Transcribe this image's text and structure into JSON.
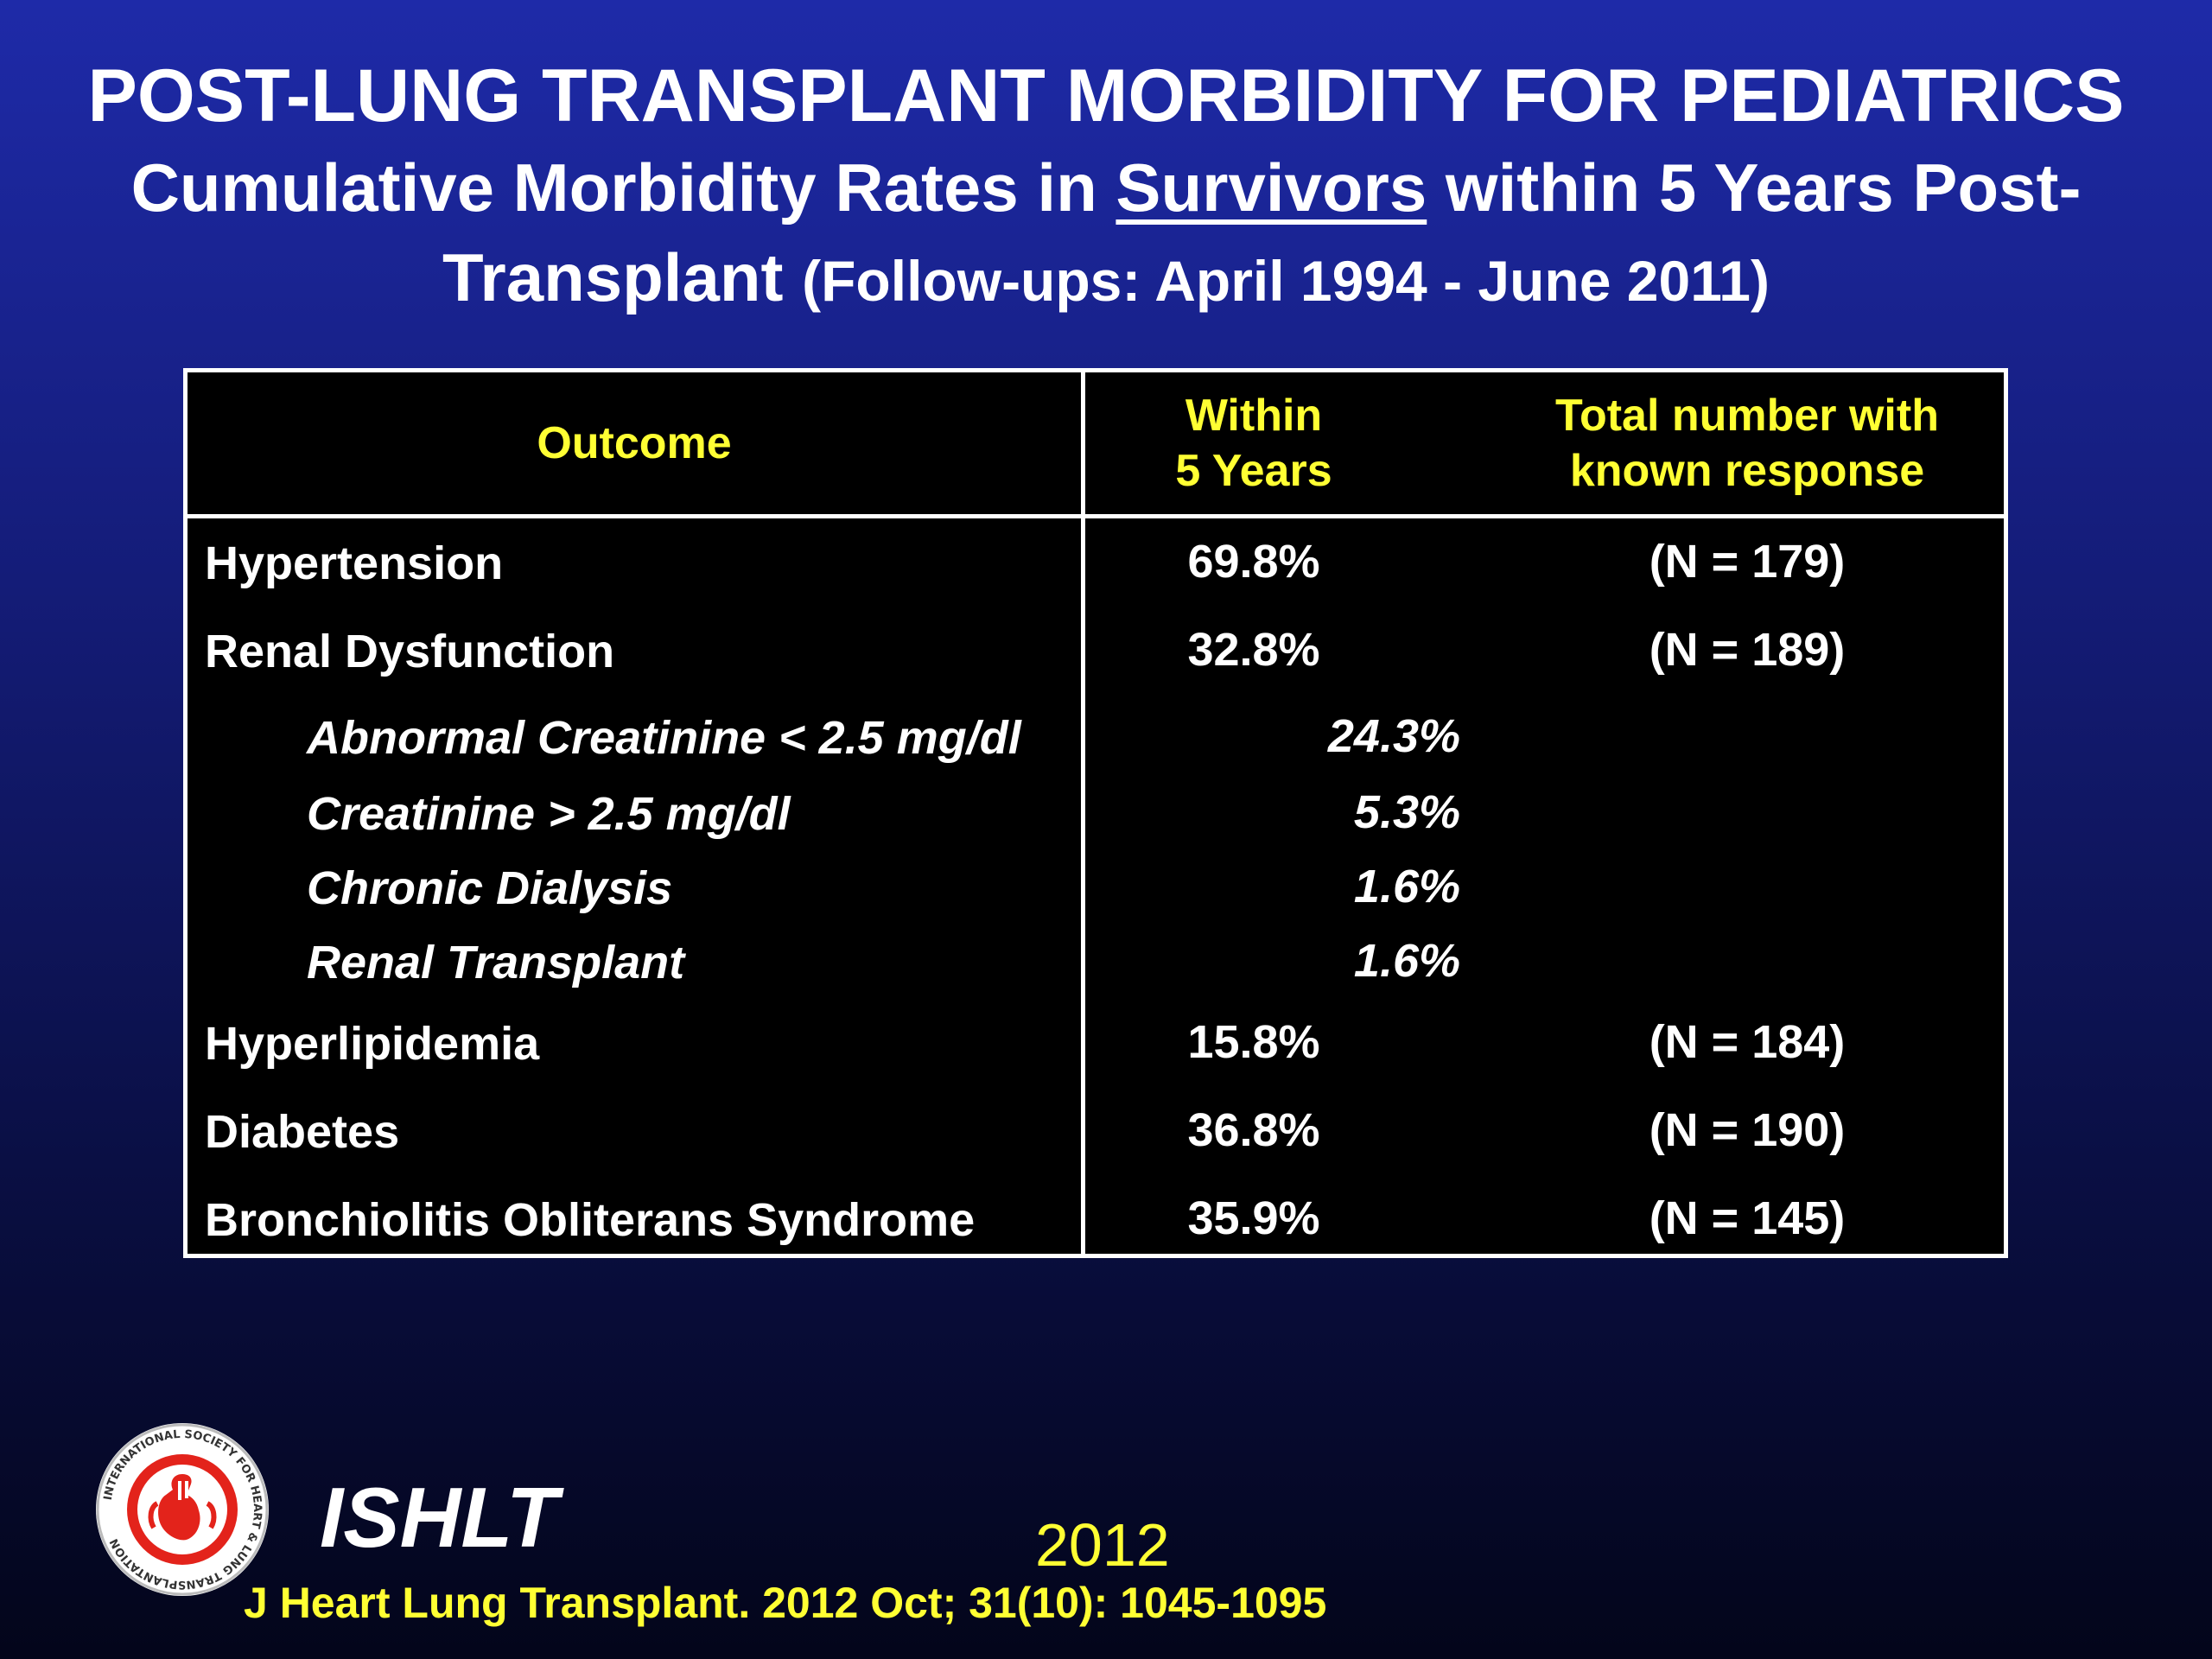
{
  "title": {
    "line1": "POST-LUNG TRANSPLANT MORBIDITY FOR PEDIATRICS",
    "line2_pre": "Cumulative Morbidity Rates in ",
    "line2_underlined": "Survivors",
    "line2_post": " within 5 Years Post-",
    "line3_main": "Transplant",
    "line3_small": "(Follow-ups: April 1994 - June 2011)"
  },
  "table": {
    "headers": {
      "outcome": "Outcome",
      "within_line1": "Within",
      "within_line2": "5 Years",
      "total_line1": "Total number with",
      "total_line2": "known response"
    },
    "rows": [
      {
        "outcome": "Hypertension",
        "within": "69.8%",
        "total": "(N = 179)"
      },
      {
        "outcome": "Renal Dysfunction",
        "within": "32.8%",
        "total": "(N = 189)"
      },
      {
        "outcome": "Abnormal Creatinine < 2.5 mg/dl",
        "within": "24.3%",
        "total": ""
      },
      {
        "outcome": "Creatinine > 2.5 mg/dl",
        "within": "5.3%",
        "total": ""
      },
      {
        "outcome": "Chronic Dialysis",
        "within": "1.6%",
        "total": ""
      },
      {
        "outcome": "Renal Transplant",
        "within": "1.6%",
        "total": ""
      },
      {
        "outcome": "Hyperlipidemia",
        "within": "15.8%",
        "total": "(N = 184)"
      },
      {
        "outcome": "Diabetes",
        "within": "36.8%",
        "total": "(N = 190)"
      },
      {
        "outcome": "Bronchiolitis Obliterans Syndrome",
        "within": "35.9%",
        "total": "(N = 145)"
      }
    ]
  },
  "footer": {
    "org": "ISHLT",
    "year": "2012",
    "citation": "J Heart Lung Transplant.  2012 Oct; 31(10): 1045-1095",
    "logo_ring_text": "INTERNATIONAL SOCIETY FOR HEART & LUNG TRANSPLANTATION"
  },
  "colors": {
    "header_text": "#ffff33",
    "citation_text": "#ffff33",
    "logo_red": "#e3231b"
  }
}
